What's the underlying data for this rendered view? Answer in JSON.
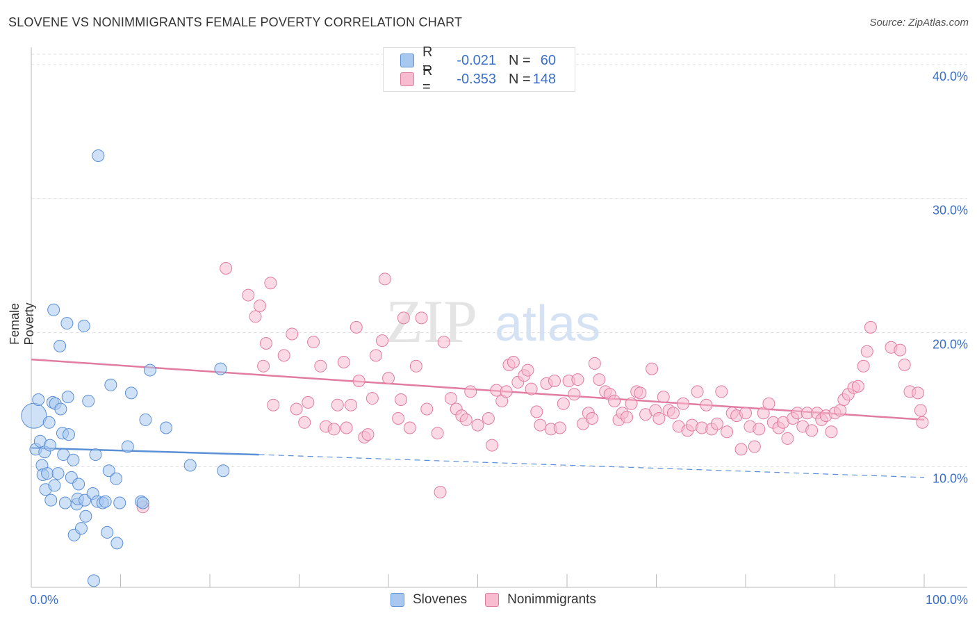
{
  "header": {
    "title": "SLOVENE VS NONIMMIGRANTS FEMALE POVERTY CORRELATION CHART",
    "source": "Source: ZipAtlas.com"
  },
  "watermark": {
    "zip": "ZIP",
    "atlas": "atlas"
  },
  "legend": {
    "rows": [
      {
        "r_label": "R =",
        "r_value": "-0.021",
        "n_label": "N =",
        "n_value": "60",
        "color": "#a8c8f0",
        "border": "#5b8fd6"
      },
      {
        "r_label": "R =",
        "r_value": "-0.353",
        "n_label": "N =",
        "n_value": "148",
        "color": "#f8bcd0",
        "border": "#e07ca0"
      }
    ]
  },
  "bottom_legend": {
    "items": [
      {
        "label": "Slovenes",
        "color": "#a8c8f0",
        "border": "#5b8fd6"
      },
      {
        "label": "Nonimmigrants",
        "color": "#f8bcd0",
        "border": "#e07ca0"
      }
    ]
  },
  "chart_data": {
    "type": "scatter",
    "title": "SLOVENE VS NONIMMIGRANTS FEMALE POVERTY CORRELATION CHART",
    "xlabel": "",
    "ylabel": "Female Poverty",
    "xlim": [
      0,
      100
    ],
    "ylim": [
      1,
      41.6
    ],
    "x_tick_labels": [
      "0.0%",
      "100.0%"
    ],
    "y_ticks": [
      10,
      20,
      30,
      40
    ],
    "y_tick_labels": [
      "10.0%",
      "20.0%",
      "30.0%",
      "40.0%"
    ],
    "grid": true,
    "legend_position": "top-center",
    "series": [
      {
        "name": "Slovenes",
        "color": "#5b8fd6",
        "fill": "#a8c8f0",
        "trend": {
          "x": [
            0,
            25.5
          ],
          "y": [
            11.4,
            10.9
          ],
          "dashed_extension": {
            "x": [
              25.5,
              100
            ],
            "y": [
              10.9,
              9.2
            ]
          }
        },
        "points": [
          [
            0.3,
            13.8
          ],
          [
            0.5,
            11.3
          ],
          [
            0.8,
            15.0
          ],
          [
            1.0,
            11.9
          ],
          [
            1.2,
            10.1
          ],
          [
            1.3,
            9.4
          ],
          [
            1.5,
            11.1
          ],
          [
            1.6,
            8.3
          ],
          [
            1.8,
            9.5
          ],
          [
            2.0,
            13.3
          ],
          [
            2.1,
            11.6
          ],
          [
            2.2,
            7.5
          ],
          [
            2.4,
            14.8
          ],
          [
            2.5,
            21.7
          ],
          [
            2.6,
            8.6
          ],
          [
            2.7,
            14.7
          ],
          [
            3.0,
            9.5
          ],
          [
            3.2,
            19.0
          ],
          [
            3.3,
            14.3
          ],
          [
            3.5,
            12.5
          ],
          [
            3.6,
            10.9
          ],
          [
            3.8,
            7.3
          ],
          [
            4.0,
            20.7
          ],
          [
            4.1,
            15.2
          ],
          [
            4.2,
            12.4
          ],
          [
            4.5,
            9.2
          ],
          [
            4.7,
            10.5
          ],
          [
            4.8,
            4.9
          ],
          [
            5.1,
            7.2
          ],
          [
            5.2,
            7.6
          ],
          [
            5.3,
            8.7
          ],
          [
            5.6,
            5.4
          ],
          [
            5.9,
            20.5
          ],
          [
            6.0,
            7.5
          ],
          [
            6.1,
            6.3
          ],
          [
            6.4,
            14.9
          ],
          [
            6.9,
            8.0
          ],
          [
            7.0,
            1.5
          ],
          [
            7.2,
            10.9
          ],
          [
            7.4,
            7.4
          ],
          [
            7.5,
            33.2
          ],
          [
            8.0,
            7.3
          ],
          [
            8.3,
            7.4
          ],
          [
            8.5,
            5.1
          ],
          [
            8.7,
            9.7
          ],
          [
            8.9,
            16.1
          ],
          [
            9.5,
            9.1
          ],
          [
            9.6,
            4.3
          ],
          [
            9.9,
            7.3
          ],
          [
            10.8,
            11.5
          ],
          [
            11.2,
            15.5
          ],
          [
            12.3,
            7.4
          ],
          [
            12.5,
            7.3
          ],
          [
            12.8,
            13.5
          ],
          [
            13.3,
            17.2
          ],
          [
            15.1,
            12.9
          ],
          [
            17.8,
            10.1
          ],
          [
            21.2,
            17.3
          ],
          [
            21.5,
            9.7
          ]
        ]
      },
      {
        "name": "Nonimmigrants",
        "color": "#e07ca0",
        "fill": "#f8bcd0",
        "trend": {
          "x": [
            0,
            100
          ],
          "y": [
            18.0,
            13.5
          ]
        },
        "points": [
          [
            12.5,
            7.0
          ],
          [
            21.8,
            24.8
          ],
          [
            24.3,
            22.8
          ],
          [
            25.1,
            21.2
          ],
          [
            25.6,
            22.0
          ],
          [
            26.0,
            17.5
          ],
          [
            26.3,
            19.2
          ],
          [
            26.8,
            23.7
          ],
          [
            27.1,
            14.6
          ],
          [
            28.3,
            18.3
          ],
          [
            29.2,
            19.9
          ],
          [
            29.7,
            14.3
          ],
          [
            30.6,
            13.3
          ],
          [
            31.0,
            14.8
          ],
          [
            31.6,
            19.3
          ],
          [
            32.4,
            17.5
          ],
          [
            33.0,
            13.0
          ],
          [
            33.9,
            12.8
          ],
          [
            34.3,
            14.6
          ],
          [
            35.0,
            17.8
          ],
          [
            35.3,
            12.9
          ],
          [
            35.8,
            14.6
          ],
          [
            36.4,
            20.4
          ],
          [
            36.7,
            16.4
          ],
          [
            37.3,
            12.2
          ],
          [
            37.7,
            12.4
          ],
          [
            38.2,
            15.1
          ],
          [
            38.6,
            18.3
          ],
          [
            39.3,
            19.4
          ],
          [
            39.6,
            24.0
          ],
          [
            40.0,
            16.6
          ],
          [
            41.1,
            13.6
          ],
          [
            41.4,
            15.0
          ],
          [
            41.7,
            21.1
          ],
          [
            42.4,
            12.9
          ],
          [
            43.1,
            17.5
          ],
          [
            43.7,
            21.1
          ],
          [
            44.3,
            14.3
          ],
          [
            45.5,
            12.5
          ],
          [
            45.8,
            8.1
          ],
          [
            46.2,
            19.3
          ],
          [
            47.0,
            15.1
          ],
          [
            47.6,
            14.3
          ],
          [
            48.2,
            13.8
          ],
          [
            48.7,
            13.5
          ],
          [
            49.2,
            15.6
          ],
          [
            50.0,
            13.1
          ],
          [
            51.2,
            13.6
          ],
          [
            51.6,
            11.6
          ],
          [
            52.1,
            15.7
          ],
          [
            52.7,
            14.9
          ],
          [
            53.2,
            15.6
          ],
          [
            53.5,
            17.6
          ],
          [
            54.0,
            17.8
          ],
          [
            54.5,
            16.3
          ],
          [
            55.2,
            16.8
          ],
          [
            55.6,
            17.2
          ],
          [
            56.0,
            15.8
          ],
          [
            56.6,
            14.1
          ],
          [
            57.0,
            13.1
          ],
          [
            57.7,
            16.2
          ],
          [
            58.2,
            12.8
          ],
          [
            58.6,
            16.4
          ],
          [
            59.2,
            12.9
          ],
          [
            59.6,
            14.7
          ],
          [
            60.2,
            16.4
          ],
          [
            60.8,
            15.4
          ],
          [
            61.2,
            16.5
          ],
          [
            61.8,
            13.2
          ],
          [
            62.4,
            14.0
          ],
          [
            62.8,
            13.6
          ],
          [
            63.1,
            17.7
          ],
          [
            63.6,
            16.5
          ],
          [
            64.3,
            15.6
          ],
          [
            64.8,
            15.4
          ],
          [
            65.3,
            14.9
          ],
          [
            65.8,
            13.5
          ],
          [
            66.2,
            14.0
          ],
          [
            66.7,
            13.7
          ],
          [
            67.2,
            14.7
          ],
          [
            67.8,
            15.6
          ],
          [
            68.2,
            15.5
          ],
          [
            68.8,
            13.9
          ],
          [
            69.5,
            17.3
          ],
          [
            69.9,
            14.2
          ],
          [
            70.3,
            13.6
          ],
          [
            70.8,
            15.2
          ],
          [
            71.4,
            14.2
          ],
          [
            71.9,
            14.0
          ],
          [
            72.5,
            13.0
          ],
          [
            73.0,
            14.7
          ],
          [
            73.5,
            12.7
          ],
          [
            74.0,
            13.1
          ],
          [
            74.6,
            15.6
          ],
          [
            75.1,
            12.9
          ],
          [
            75.6,
            14.6
          ],
          [
            76.2,
            12.8
          ],
          [
            76.8,
            13.2
          ],
          [
            77.3,
            15.6
          ],
          [
            77.9,
            12.6
          ],
          [
            78.5,
            14.0
          ],
          [
            79.0,
            13.8
          ],
          [
            79.5,
            11.3
          ],
          [
            80.0,
            14.0
          ],
          [
            80.5,
            13.0
          ],
          [
            81.0,
            11.5
          ],
          [
            81.5,
            12.8
          ],
          [
            82.0,
            14.0
          ],
          [
            82.6,
            14.7
          ],
          [
            83.1,
            13.3
          ],
          [
            83.7,
            12.9
          ],
          [
            84.2,
            13.3
          ],
          [
            84.7,
            12.1
          ],
          [
            85.3,
            13.6
          ],
          [
            85.8,
            14.0
          ],
          [
            86.4,
            13.0
          ],
          [
            86.9,
            14.0
          ],
          [
            87.4,
            12.7
          ],
          [
            88.0,
            14.0
          ],
          [
            88.5,
            13.5
          ],
          [
            89.0,
            13.8
          ],
          [
            89.6,
            12.6
          ],
          [
            90.0,
            14.0
          ],
          [
            90.6,
            14.2
          ],
          [
            91.0,
            15.0
          ],
          [
            91.5,
            15.4
          ],
          [
            92.1,
            15.9
          ],
          [
            92.6,
            16.0
          ],
          [
            93.2,
            17.5
          ],
          [
            93.6,
            18.6
          ],
          [
            94.0,
            20.4
          ],
          [
            96.3,
            18.9
          ],
          [
            97.3,
            18.7
          ],
          [
            97.8,
            17.6
          ],
          [
            98.4,
            15.6
          ],
          [
            99.3,
            15.5
          ],
          [
            99.6,
            14.2
          ],
          [
            99.8,
            13.3
          ]
        ]
      }
    ]
  }
}
